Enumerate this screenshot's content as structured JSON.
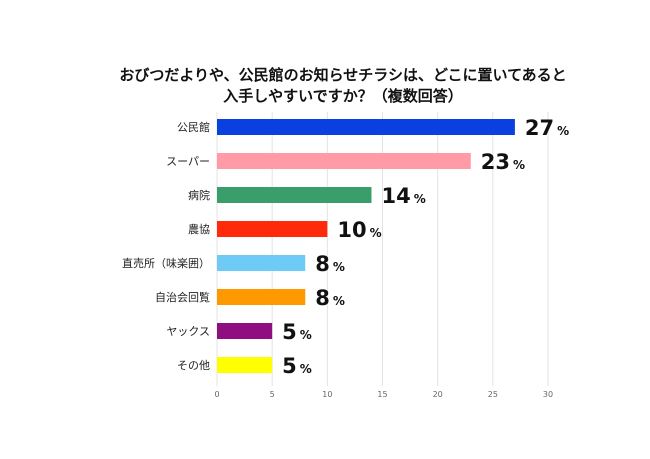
{
  "chart_data": {
    "type": "bar",
    "orientation": "horizontal",
    "title_lines": [
      "おびつだよりや、公民館のお知らせチラシは、どこに置いてあると",
      "入手しやすいですか？（複数回答）"
    ],
    "categories": [
      "公民館",
      "スーパー",
      "病院",
      "農協",
      "直売所（味楽囲）",
      "自治会回覧",
      "ヤックス",
      "その他"
    ],
    "values": [
      27,
      23,
      14,
      10,
      8,
      8,
      5,
      5
    ],
    "value_unit": "%",
    "colors": [
      "#0a3fe0",
      "#ff9aa6",
      "#3a9e6a",
      "#ff2a0a",
      "#6ecbf5",
      "#ff9900",
      "#8f0f80",
      "#ffff00"
    ],
    "xlim": [
      0,
      30
    ],
    "x_ticks": [
      "0",
      "5",
      "10",
      "15",
      "20",
      "25",
      "30"
    ],
    "grid": true,
    "legend": "none"
  }
}
